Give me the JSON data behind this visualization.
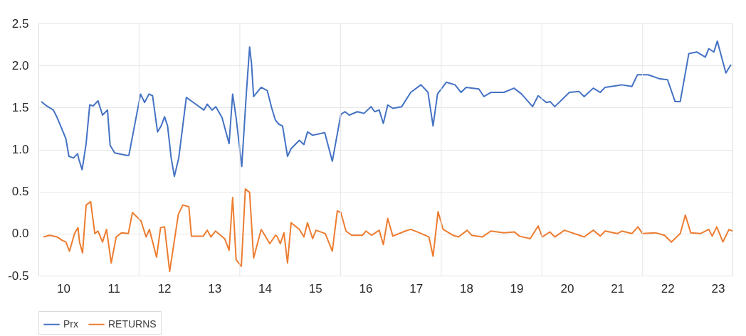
{
  "chart_data": {
    "type": "line",
    "xlim": [
      "2010-01-01",
      "2023-10-15"
    ],
    "xticks": [
      {
        "value": "2010-07-01",
        "label": "10"
      },
      {
        "value": "2011-07-01",
        "label": "11"
      },
      {
        "value": "2012-01-01",
        "label": null
      },
      {
        "value": "2012-07-01",
        "label": "12"
      },
      {
        "value": "2013-07-01",
        "label": "13"
      },
      {
        "value": "2014-01-01",
        "label": null
      },
      {
        "value": "2014-07-01",
        "label": "14"
      },
      {
        "value": "2015-07-01",
        "label": "15"
      },
      {
        "value": "2016-01-01",
        "label": null
      },
      {
        "value": "2016-07-01",
        "label": "16"
      },
      {
        "value": "2017-07-01",
        "label": "17"
      },
      {
        "value": "2018-01-01",
        "label": null
      },
      {
        "value": "2018-07-01",
        "label": "18"
      },
      {
        "value": "2019-07-01",
        "label": "19"
      },
      {
        "value": "2020-01-01",
        "label": null
      },
      {
        "value": "2020-07-01",
        "label": "20"
      },
      {
        "value": "2021-07-01",
        "label": "21"
      },
      {
        "value": "2022-01-01",
        "label": null
      },
      {
        "value": "2022-07-01",
        "label": "22"
      },
      {
        "value": "2023-07-01",
        "label": "23"
      }
    ],
    "ylim": [
      -0.5,
      2.5
    ],
    "yticks": [
      {
        "value": -0.5,
        "label": "-0.5"
      },
      {
        "value": 0,
        "label": "0.0"
      },
      {
        "value": 0.5,
        "label": "0.5"
      },
      {
        "value": 1,
        "label": "1.0"
      },
      {
        "value": 1.5,
        "label": "1.5"
      },
      {
        "value": 2,
        "label": "2.0"
      },
      {
        "value": 2.5,
        "label": "2.5"
      }
    ],
    "grid": true,
    "legend": "bottom",
    "line_style": "solid",
    "marker": "none",
    "series": [
      {
        "name": "Prx",
        "color": "#4472c4",
        "x": [
          "2010-01-22",
          "2010-02-28",
          "2010-04-19",
          "2010-05-17",
          "2010-07-19",
          "2010-08-10",
          "2010-09-13",
          "2010-10-12",
          "2010-10-22",
          "2010-11-14",
          "2010-12-13",
          "2011-01-08",
          "2011-02-03",
          "2011-03-09",
          "2011-04-11",
          "2011-05-17",
          "2011-06-05",
          "2011-07-08",
          "2011-10-04",
          "2011-10-19",
          "2012-01-12",
          "2012-02-10",
          "2012-03-13",
          "2012-04-08",
          "2012-05-14",
          "2012-06-09",
          "2012-07-04",
          "2012-07-26",
          "2012-08-21",
          "2012-09-13",
          "2012-10-15",
          "2012-12-09",
          "2013-01-29",
          "2013-04-15",
          "2013-05-10",
          "2013-06-13",
          "2013-07-11",
          "2013-08-25",
          "2013-10-15",
          "2013-11-10",
          "2013-12-05",
          "2014-01-15",
          "2014-02-17",
          "2014-03-13",
          "2014-03-27",
          "2014-04-11",
          "2014-06-05",
          "2014-07-19",
          "2014-08-21",
          "2014-09-16",
          "2014-10-12",
          "2014-11-07",
          "2014-12-13",
          "2015-01-08",
          "2015-03-09",
          "2015-04-11",
          "2015-05-07",
          "2015-06-13",
          "2015-09-09",
          "2015-11-03",
          "2016-01-04",
          "2016-02-03",
          "2016-03-05",
          "2016-05-03",
          "2016-06-20",
          "2016-08-10",
          "2016-09-05",
          "2016-10-08",
          "2016-11-07",
          "2016-12-09",
          "2017-01-15",
          "2017-03-20",
          "2017-05-25",
          "2017-08-07",
          "2017-09-27",
          "2017-11-03",
          "2017-12-05",
          "2018-02-07",
          "2018-04-11",
          "2018-05-25",
          "2018-07-01",
          "2018-10-01",
          "2018-11-07",
          "2018-12-27",
          "2019-04-01",
          "2019-06-13",
          "2019-08-07",
          "2019-10-26",
          "2019-12-05",
          "2020-02-03",
          "2020-03-02",
          "2020-04-04",
          "2020-07-19",
          "2020-09-27",
          "2020-11-03",
          "2021-01-08",
          "2021-02-28",
          "2021-04-04",
          "2021-07-01",
          "2021-08-03",
          "2021-10-15",
          "2021-11-25",
          "2022-02-10",
          "2022-05-07",
          "2022-07-01",
          "2022-08-25",
          "2022-10-01",
          "2022-12-02",
          "2023-01-29",
          "2023-04-01",
          "2023-04-26",
          "2023-06-02",
          "2023-06-27",
          "2023-08-28",
          "2023-10-04"
        ],
        "values": [
          1.57,
          1.52,
          1.47,
          1.38,
          1.13,
          0.92,
          0.9,
          0.95,
          0.88,
          0.76,
          1.07,
          1.53,
          1.52,
          1.58,
          1.41,
          1.47,
          1.05,
          0.96,
          0.93,
          0.93,
          1.66,
          1.56,
          1.66,
          1.64,
          1.21,
          1.28,
          1.39,
          1.28,
          0.9,
          0.68,
          0.9,
          1.62,
          1.56,
          1.47,
          1.54,
          1.47,
          1.51,
          1.38,
          1.07,
          1.66,
          1.38,
          0.8,
          1.66,
          2.22,
          2.02,
          1.63,
          1.74,
          1.7,
          1.49,
          1.35,
          1.3,
          1.28,
          0.92,
          1.01,
          1.11,
          1.06,
          1.21,
          1.17,
          1.2,
          0.86,
          1.42,
          1.45,
          1.41,
          1.45,
          1.43,
          1.51,
          1.45,
          1.47,
          1.31,
          1.53,
          1.49,
          1.51,
          1.68,
          1.77,
          1.68,
          1.28,
          1.66,
          1.8,
          1.77,
          1.68,
          1.74,
          1.72,
          1.63,
          1.68,
          1.68,
          1.73,
          1.66,
          1.51,
          1.64,
          1.56,
          1.57,
          1.51,
          1.68,
          1.69,
          1.63,
          1.73,
          1.68,
          1.74,
          1.76,
          1.77,
          1.75,
          1.89,
          1.89,
          1.84,
          1.83,
          1.57,
          1.57,
          2.14,
          2.16,
          2.1,
          2.2,
          2.16,
          2.29,
          1.91,
          2.01
        ]
      },
      {
        "name": "RETURNS",
        "color": "#ed7d31",
        "x": [
          "2010-02-07",
          "2010-03-23",
          "2010-05-17",
          "2010-06-23",
          "2010-07-19",
          "2010-08-14",
          "2010-09-20",
          "2010-10-15",
          "2010-10-26",
          "2010-11-17",
          "2010-12-13",
          "2011-01-15",
          "2011-02-14",
          "2011-03-09",
          "2011-04-11",
          "2011-05-10",
          "2011-06-13",
          "2011-07-19",
          "2011-08-28",
          "2011-10-15",
          "2011-11-14",
          "2012-01-15",
          "2012-02-21",
          "2012-03-16",
          "2012-05-07",
          "2012-06-05",
          "2012-07-04",
          "2012-08-10",
          "2012-10-12",
          "2012-11-14",
          "2012-12-27",
          "2013-01-15",
          "2013-04-11",
          "2013-05-10",
          "2013-06-05",
          "2013-07-08",
          "2013-09-13",
          "2013-10-15",
          "2013-11-10",
          "2013-12-05",
          "2014-01-12",
          "2014-02-10",
          "2014-03-13",
          "2014-04-11",
          "2014-06-05",
          "2014-08-07",
          "2014-09-16",
          "2014-09-27",
          "2014-10-22",
          "2014-11-17",
          "2014-12-13",
          "2015-01-08",
          "2015-03-09",
          "2015-04-11",
          "2015-05-07",
          "2015-06-13",
          "2015-07-08",
          "2015-09-13",
          "2015-11-03",
          "2015-12-09",
          "2016-01-04",
          "2016-02-10",
          "2016-03-23",
          "2016-06-09",
          "2016-07-04",
          "2016-08-14",
          "2016-10-08",
          "2016-11-07",
          "2016-12-09",
          "2017-01-15",
          "2017-04-15",
          "2017-05-25",
          "2017-07-26",
          "2017-10-04",
          "2017-11-03",
          "2017-12-09",
          "2018-01-15",
          "2018-03-27",
          "2018-05-07",
          "2018-07-08",
          "2018-08-10",
          "2018-10-26",
          "2018-12-27",
          "2019-04-01",
          "2019-06-16",
          "2019-07-22",
          "2019-10-08",
          "2019-12-05",
          "2020-01-04",
          "2020-02-28",
          "2020-04-04",
          "2020-06-13",
          "2020-11-03",
          "2021-01-08",
          "2021-02-28",
          "2021-04-04",
          "2021-07-01",
          "2021-08-03",
          "2021-10-15",
          "2021-11-28",
          "2022-01-01",
          "2022-04-04",
          "2022-06-09",
          "2022-07-29",
          "2022-10-01",
          "2022-11-07",
          "2022-12-16",
          "2023-02-25",
          "2023-04-26",
          "2023-05-21",
          "2023-06-23",
          "2023-08-07",
          "2023-09-20",
          "2023-10-15"
        ],
        "values": [
          -0.04,
          -0.02,
          -0.04,
          -0.08,
          -0.1,
          -0.21,
          0.0,
          0.07,
          -0.1,
          -0.23,
          0.34,
          0.38,
          0.0,
          0.03,
          -0.1,
          0.05,
          -0.35,
          -0.04,
          0.01,
          0.0,
          0.25,
          0.15,
          -0.04,
          0.05,
          -0.28,
          0.07,
          0.08,
          -0.45,
          0.23,
          0.34,
          0.32,
          -0.03,
          -0.03,
          0.04,
          -0.04,
          0.03,
          -0.06,
          -0.2,
          0.43,
          -0.31,
          -0.39,
          0.53,
          0.49,
          -0.29,
          0.05,
          -0.12,
          -0.02,
          -0.03,
          -0.12,
          0.01,
          -0.35,
          0.13,
          0.05,
          -0.04,
          0.13,
          -0.06,
          0.04,
          0.0,
          -0.21,
          0.27,
          0.25,
          0.03,
          -0.02,
          -0.02,
          0.03,
          -0.02,
          0.04,
          -0.13,
          0.18,
          -0.03,
          0.03,
          0.05,
          0.01,
          -0.04,
          -0.27,
          0.26,
          0.05,
          -0.02,
          -0.04,
          0.04,
          -0.02,
          -0.04,
          0.03,
          0.01,
          0.02,
          -0.03,
          -0.06,
          0.09,
          -0.04,
          0.02,
          -0.04,
          0.04,
          -0.04,
          0.04,
          -0.03,
          0.03,
          0.0,
          0.03,
          0.0,
          0.08,
          0.0,
          0.01,
          -0.02,
          -0.1,
          0.0,
          0.22,
          0.01,
          0.0,
          0.05,
          -0.03,
          0.08,
          -0.1,
          0.05,
          0.03
        ]
      }
    ]
  }
}
